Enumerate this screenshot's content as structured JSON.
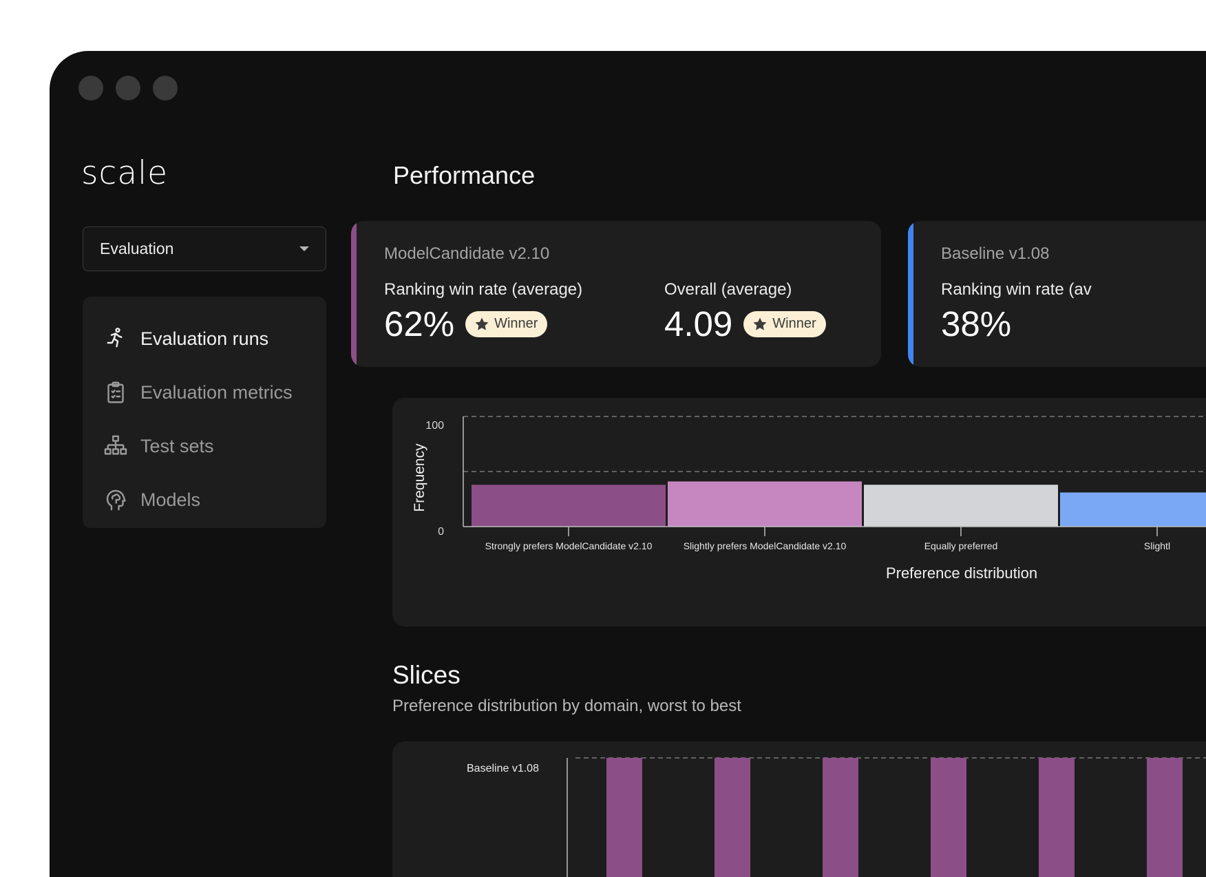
{
  "sidebar": {
    "logo": "scale",
    "selector": {
      "value": "Evaluation"
    },
    "items": [
      {
        "label": "Evaluation runs",
        "icon": "running-person-icon",
        "active": true
      },
      {
        "label": "Evaluation metrics",
        "icon": "clipboard-checklist-icon",
        "active": false
      },
      {
        "label": "Test sets",
        "icon": "hierarchy-icon",
        "active": false
      },
      {
        "label": "Models",
        "icon": "brain-head-icon",
        "active": false
      }
    ]
  },
  "performance": {
    "title": "Performance",
    "candidate": {
      "model": "ModelCandidate v2.10",
      "accent": "#8c4f89",
      "metrics": [
        {
          "label": "Ranking win rate (average)",
          "value": "62%",
          "badge": "Winner"
        },
        {
          "label": "Overall (average)",
          "value": "4.09",
          "badge": "Winner"
        }
      ]
    },
    "baseline": {
      "model": "Baseline v1.08",
      "accent": "#3f86f5",
      "metrics": [
        {
          "label": "Ranking win rate (av",
          "value": "38%"
        }
      ]
    }
  },
  "chart_data": {
    "type": "bar",
    "title": "",
    "ylabel": "Frequency",
    "xlabel": "Preference distribution",
    "ylim": [
      0,
      100
    ],
    "yticks": [
      "100",
      "0"
    ],
    "grid": "dashed-horizontal",
    "categories": [
      "Strongly prefers ModelCandidate v2.10",
      "Slightly prefers ModelCandidate v2.10",
      "Equally preferred",
      "Slightl"
    ],
    "values": [
      38,
      41,
      38,
      31
    ],
    "colors": [
      "#8b4e86",
      "#c687c1",
      "#d2d4d8",
      "#7aa8f4"
    ]
  },
  "slices": {
    "title": "Slices",
    "subtitle": "Preference distribution by domain, worst to best",
    "row_label": "Baseline v1.08",
    "bar_color": "#8b4e86"
  }
}
